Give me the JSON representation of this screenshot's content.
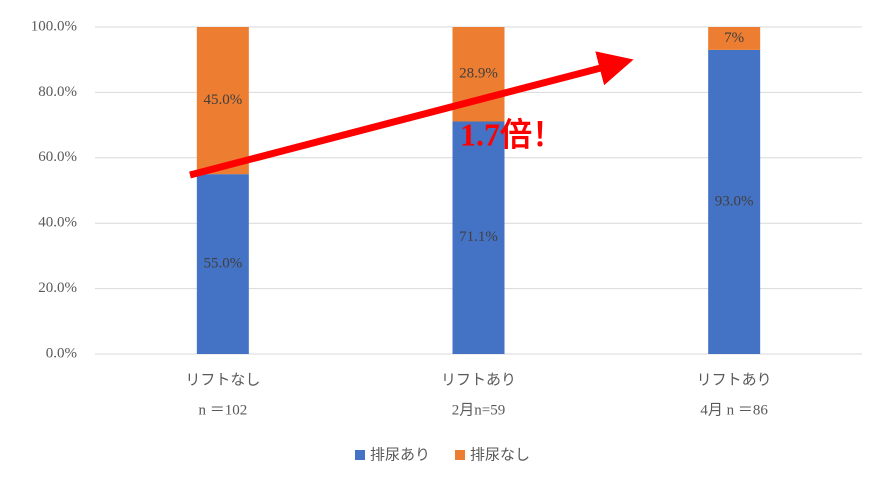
{
  "chart_data": {
    "type": "stacked_bar",
    "categories": [
      [
        "リフトなし",
        "n ＝102"
      ],
      [
        "リフトあり",
        "2月n=59"
      ],
      [
        "リフトあり",
        "4月 n ＝86"
      ]
    ],
    "series": [
      {
        "name": "排尿あり",
        "color": "#4472c4",
        "values": [
          55.0,
          71.1,
          93.0
        ],
        "value_labels": [
          "55.0%",
          "71.1%",
          "93.0%"
        ]
      },
      {
        "name": "排尿なし",
        "color": "#ed7d31",
        "values": [
          45.0,
          28.9,
          7
        ],
        "value_labels": [
          "45.0%",
          "28.9%",
          "7%"
        ]
      }
    ],
    "ylim": [
      0,
      100
    ],
    "yticks": [
      {
        "value": 0,
        "label": "0.0%"
      },
      {
        "value": 20,
        "label": "20.0%"
      },
      {
        "value": 40,
        "label": "40.0%"
      },
      {
        "value": 60,
        "label": "60.0%"
      },
      {
        "value": 80,
        "label": "80.0%"
      },
      {
        "value": 100,
        "label": "100.0%"
      }
    ],
    "grid": true,
    "legend": "bottom",
    "annotation": "1.7倍！"
  }
}
